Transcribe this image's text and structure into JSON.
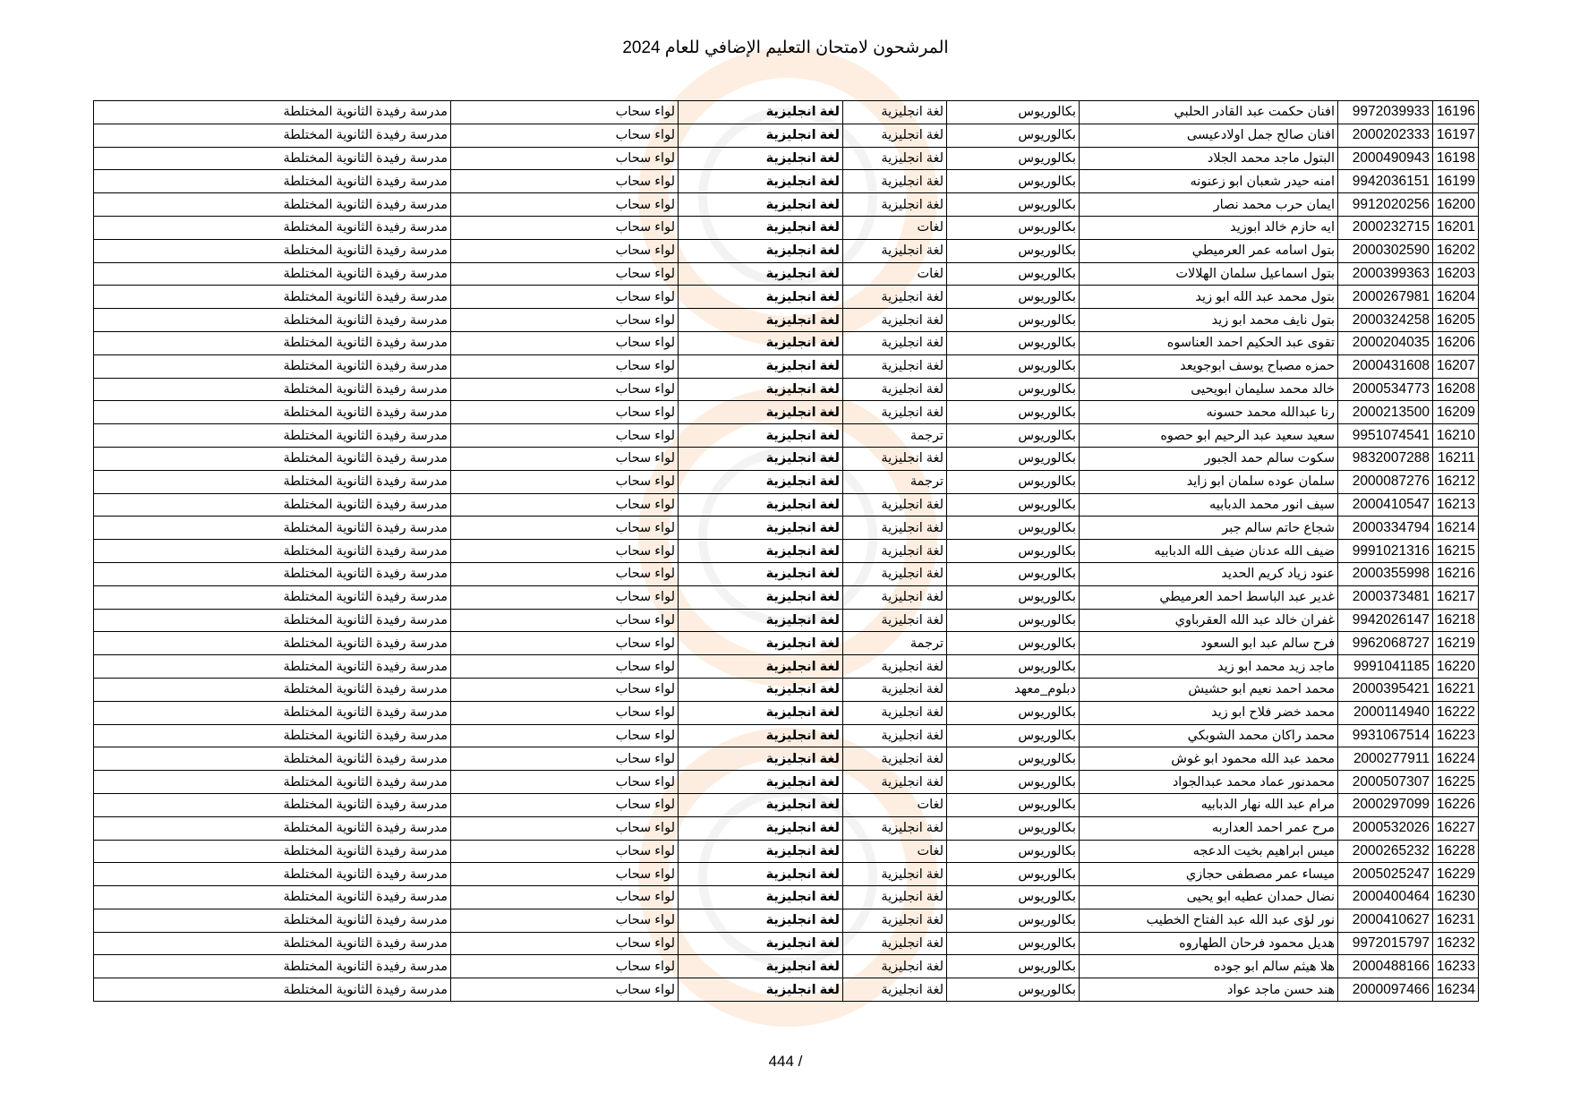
{
  "document": {
    "title": "المرشحون لامتحان التعليم الإضافي للعام 2024",
    "page_number": "444 /"
  },
  "table": {
    "rows": [
      {
        "seq": "16196",
        "national_id": "9972039933",
        "name": "افنان حكمت عبد القادر الحلبي",
        "degree": "بكالوريوس",
        "specialization": "لغة انجليزية",
        "major": "لغة انجليزية",
        "district": "لواء سحاب",
        "school": "مدرسة رفيدة الثانوية المختلطة"
      },
      {
        "seq": "16197",
        "national_id": "2000202333",
        "name": "افنان صالح جمل اولادعيسى",
        "degree": "بكالوريوس",
        "specialization": "لغة انجليزية",
        "major": "لغة انجليزية",
        "district": "لواء سحاب",
        "school": "مدرسة رفيدة الثانوية المختلطة"
      },
      {
        "seq": "16198",
        "national_id": "2000490943",
        "name": "البتول ماجد محمد الجلاد",
        "degree": "بكالوريوس",
        "specialization": "لغة انجليزية",
        "major": "لغة انجليزية",
        "district": "لواء سحاب",
        "school": "مدرسة رفيدة الثانوية المختلطة"
      },
      {
        "seq": "16199",
        "national_id": "9942036151",
        "name": "امنه حيدر شعبان ابو زعنونه",
        "degree": "بكالوريوس",
        "specialization": "لغة انجليزية",
        "major": "لغة انجليزية",
        "district": "لواء سحاب",
        "school": "مدرسة رفيدة الثانوية المختلطة"
      },
      {
        "seq": "16200",
        "national_id": "9912020256",
        "name": "ايمان حرب محمد نصار",
        "degree": "بكالوريوس",
        "specialization": "لغة انجليزية",
        "major": "لغة انجليزية",
        "district": "لواء سحاب",
        "school": "مدرسة رفيدة الثانوية المختلطة"
      },
      {
        "seq": "16201",
        "national_id": "2000232715",
        "name": "ايه حازم خالد ابوزيد",
        "degree": "بكالوريوس",
        "specialization": "لغات",
        "major": "لغة انجليزية",
        "district": "لواء سحاب",
        "school": "مدرسة رفيدة الثانوية المختلطة"
      },
      {
        "seq": "16202",
        "national_id": "2000302590",
        "name": "بتول اسامه عمر العرميطي",
        "degree": "بكالوريوس",
        "specialization": "لغة انجليزية",
        "major": "لغة انجليزية",
        "district": "لواء سحاب",
        "school": "مدرسة رفيدة الثانوية المختلطة"
      },
      {
        "seq": "16203",
        "national_id": "2000399363",
        "name": "بتول اسماعيل سلمان الهلالات",
        "degree": "بكالوريوس",
        "specialization": "لغات",
        "major": "لغة انجليزية",
        "district": "لواء سحاب",
        "school": "مدرسة رفيدة الثانوية المختلطة"
      },
      {
        "seq": "16204",
        "national_id": "2000267981",
        "name": "بتول محمد عبد الله ابو زيد",
        "degree": "بكالوريوس",
        "specialization": "لغة انجليزية",
        "major": "لغة انجليزية",
        "district": "لواء سحاب",
        "school": "مدرسة رفيدة الثانوية المختلطة"
      },
      {
        "seq": "16205",
        "national_id": "2000324258",
        "name": "بتول نايف محمد ابو زيد",
        "degree": "بكالوريوس",
        "specialization": "لغة انجليزية",
        "major": "لغة انجليزية",
        "district": "لواء سحاب",
        "school": "مدرسة رفيدة الثانوية المختلطة"
      },
      {
        "seq": "16206",
        "national_id": "2000204035",
        "name": "تقوى عبد الحكيم احمد العناسوه",
        "degree": "بكالوريوس",
        "specialization": "لغة انجليزية",
        "major": "لغة انجليزية",
        "district": "لواء سحاب",
        "school": "مدرسة رفيدة الثانوية المختلطة"
      },
      {
        "seq": "16207",
        "national_id": "2000431608",
        "name": "حمزه مصباح يوسف ابوجويعد",
        "degree": "بكالوريوس",
        "specialization": "لغة انجليزية",
        "major": "لغة انجليزية",
        "district": "لواء سحاب",
        "school": "مدرسة رفيدة الثانوية المختلطة"
      },
      {
        "seq": "16208",
        "national_id": "2000534773",
        "name": "خالد محمد سليمان ابويحيى",
        "degree": "بكالوريوس",
        "specialization": "لغة انجليزية",
        "major": "لغة انجليزية",
        "district": "لواء سحاب",
        "school": "مدرسة رفيدة الثانوية المختلطة"
      },
      {
        "seq": "16209",
        "national_id": "2000213500",
        "name": "رنا عبدالله محمد حسونه",
        "degree": "بكالوريوس",
        "specialization": "لغة انجليزية",
        "major": "لغة انجليزية",
        "district": "لواء سحاب",
        "school": "مدرسة رفيدة الثانوية المختلطة"
      },
      {
        "seq": "16210",
        "national_id": "9951074541",
        "name": "سعيد سعيد عبد الرحيم ابو حصوه",
        "degree": "بكالوريوس",
        "specialization": "ترجمة",
        "major": "لغة انجليزية",
        "district": "لواء سحاب",
        "school": "مدرسة رفيدة الثانوية المختلطة"
      },
      {
        "seq": "16211",
        "national_id": "9832007288",
        "name": "سكوت سالم حمد الجبور",
        "degree": "بكالوريوس",
        "specialization": "لغة انجليزية",
        "major": "لغة انجليزية",
        "district": "لواء سحاب",
        "school": "مدرسة رفيدة الثانوية المختلطة"
      },
      {
        "seq": "16212",
        "national_id": "2000087276",
        "name": "سلمان عوده سلمان ابو زايد",
        "degree": "بكالوريوس",
        "specialization": "ترجمة",
        "major": "لغة انجليزية",
        "district": "لواء سحاب",
        "school": "مدرسة رفيدة الثانوية المختلطة"
      },
      {
        "seq": "16213",
        "national_id": "2000410547",
        "name": "سيف انور محمد الدبابيه",
        "degree": "بكالوريوس",
        "specialization": "لغة انجليزية",
        "major": "لغة انجليزية",
        "district": "لواء سحاب",
        "school": "مدرسة رفيدة الثانوية المختلطة"
      },
      {
        "seq": "16214",
        "national_id": "2000334794",
        "name": "شجاع حاتم سالم جبر",
        "degree": "بكالوريوس",
        "specialization": "لغة انجليزية",
        "major": "لغة انجليزية",
        "district": "لواء سحاب",
        "school": "مدرسة رفيدة الثانوية المختلطة"
      },
      {
        "seq": "16215",
        "national_id": "9991021316",
        "name": "ضيف الله عدنان ضيف الله الدبابيه",
        "degree": "بكالوريوس",
        "specialization": "لغة انجليزية",
        "major": "لغة انجليزية",
        "district": "لواء سحاب",
        "school": "مدرسة رفيدة الثانوية المختلطة"
      },
      {
        "seq": "16216",
        "national_id": "2000355998",
        "name": "عنود زياد كريم الحديد",
        "degree": "بكالوريوس",
        "specialization": "لغة انجليزية",
        "major": "لغة انجليزية",
        "district": "لواء سحاب",
        "school": "مدرسة رفيدة الثانوية المختلطة"
      },
      {
        "seq": "16217",
        "national_id": "2000373481",
        "name": "غدير عبد الباسط احمد العرميطي",
        "degree": "بكالوريوس",
        "specialization": "لغة انجليزية",
        "major": "لغة انجليزية",
        "district": "لواء سحاب",
        "school": "مدرسة رفيدة الثانوية المختلطة"
      },
      {
        "seq": "16218",
        "national_id": "9942026147",
        "name": "غفران خالد عبد الله العقرباوي",
        "degree": "بكالوريوس",
        "specialization": "لغة انجليزية",
        "major": "لغة انجليزية",
        "district": "لواء سحاب",
        "school": "مدرسة رفيدة الثانوية المختلطة"
      },
      {
        "seq": "16219",
        "national_id": "9962068727",
        "name": "فرح سالم عبد ابو السعود",
        "degree": "بكالوريوس",
        "specialization": "ترجمة",
        "major": "لغة انجليزية",
        "district": "لواء سحاب",
        "school": "مدرسة رفيدة الثانوية المختلطة"
      },
      {
        "seq": "16220",
        "national_id": "9991041185",
        "name": "ماجد زيد محمد ابو زيد",
        "degree": "بكالوريوس",
        "specialization": "لغة انجليزية",
        "major": "لغة انجليزية",
        "district": "لواء سحاب",
        "school": "مدرسة رفيدة الثانوية المختلطة"
      },
      {
        "seq": "16221",
        "national_id": "2000395421",
        "name": "محمد احمد نعيم ابو حشيش",
        "degree": "دبلوم_معهد",
        "specialization": "لغة انجليزية",
        "major": "لغة انجليزية",
        "district": "لواء سحاب",
        "school": "مدرسة رفيدة الثانوية المختلطة"
      },
      {
        "seq": "16222",
        "national_id": "2000114940",
        "name": "محمد خضر فلاح ابو زيد",
        "degree": "بكالوريوس",
        "specialization": "لغة انجليزية",
        "major": "لغة انجليزية",
        "district": "لواء سحاب",
        "school": "مدرسة رفيدة الثانوية المختلطة"
      },
      {
        "seq": "16223",
        "national_id": "9931067514",
        "name": "محمد راكان محمد الشوبكي",
        "degree": "بكالوريوس",
        "specialization": "لغة انجليزية",
        "major": "لغة انجليزية",
        "district": "لواء سحاب",
        "school": "مدرسة رفيدة الثانوية المختلطة"
      },
      {
        "seq": "16224",
        "national_id": "2000277911",
        "name": "محمد عبد الله محمود ابو غوش",
        "degree": "بكالوريوس",
        "specialization": "لغة انجليزية",
        "major": "لغة انجليزية",
        "district": "لواء سحاب",
        "school": "مدرسة رفيدة الثانوية المختلطة"
      },
      {
        "seq": "16225",
        "national_id": "2000507307",
        "name": "محمدنور عماد محمد عبدالجواد",
        "degree": "بكالوريوس",
        "specialization": "لغة انجليزية",
        "major": "لغة انجليزية",
        "district": "لواء سحاب",
        "school": "مدرسة رفيدة الثانوية المختلطة"
      },
      {
        "seq": "16226",
        "national_id": "2000297099",
        "name": "مرام عبد الله نهار الدبابيه",
        "degree": "بكالوريوس",
        "specialization": "لغات",
        "major": "لغة انجليزية",
        "district": "لواء سحاب",
        "school": "مدرسة رفيدة الثانوية المختلطة"
      },
      {
        "seq": "16227",
        "national_id": "2000532026",
        "name": "مرح عمر احمد العداربه",
        "degree": "بكالوريوس",
        "specialization": "لغة انجليزية",
        "major": "لغة انجليزية",
        "district": "لواء سحاب",
        "school": "مدرسة رفيدة الثانوية المختلطة"
      },
      {
        "seq": "16228",
        "national_id": "2000265232",
        "name": "ميس ابراهيم بخيت الدعجه",
        "degree": "بكالوريوس",
        "specialization": "لغات",
        "major": "لغة انجليزية",
        "district": "لواء سحاب",
        "school": "مدرسة رفيدة الثانوية المختلطة"
      },
      {
        "seq": "16229",
        "national_id": "2005025247",
        "name": "ميساء عمر مصطفى حجازي",
        "degree": "بكالوريوس",
        "specialization": "لغة انجليزية",
        "major": "لغة انجليزية",
        "district": "لواء سحاب",
        "school": "مدرسة رفيدة الثانوية المختلطة"
      },
      {
        "seq": "16230",
        "national_id": "2000400464",
        "name": "نضال حمدان عطيه ابو يحيى",
        "degree": "بكالوريوس",
        "specialization": "لغة انجليزية",
        "major": "لغة انجليزية",
        "district": "لواء سحاب",
        "school": "مدرسة رفيدة الثانوية المختلطة"
      },
      {
        "seq": "16231",
        "national_id": "2000410627",
        "name": "نور لؤى عبد الله عبد الفتاح الخطيب",
        "degree": "بكالوريوس",
        "specialization": "لغة انجليزية",
        "major": "لغة انجليزية",
        "district": "لواء سحاب",
        "school": "مدرسة رفيدة الثانوية المختلطة"
      },
      {
        "seq": "16232",
        "national_id": "9972015797",
        "name": "هديل محمود فرحان الطهاروه",
        "degree": "بكالوريوس",
        "specialization": "لغة انجليزية",
        "major": "لغة انجليزية",
        "district": "لواء سحاب",
        "school": "مدرسة رفيدة الثانوية المختلطة"
      },
      {
        "seq": "16233",
        "national_id": "2000488166",
        "name": "هلا هيثم سالم ابو جوده",
        "degree": "بكالوريوس",
        "specialization": "لغة انجليزية",
        "major": "لغة انجليزية",
        "district": "لواء سحاب",
        "school": "مدرسة رفيدة الثانوية المختلطة"
      },
      {
        "seq": "16234",
        "national_id": "2000097466",
        "name": "هند حسن ماجد عواد",
        "degree": "بكالوريوس",
        "specialization": "لغة انجليزية",
        "major": "لغة انجليزية",
        "district": "لواء سحاب",
        "school": "مدرسة رفيدة الثانوية المختلطة"
      }
    ]
  }
}
